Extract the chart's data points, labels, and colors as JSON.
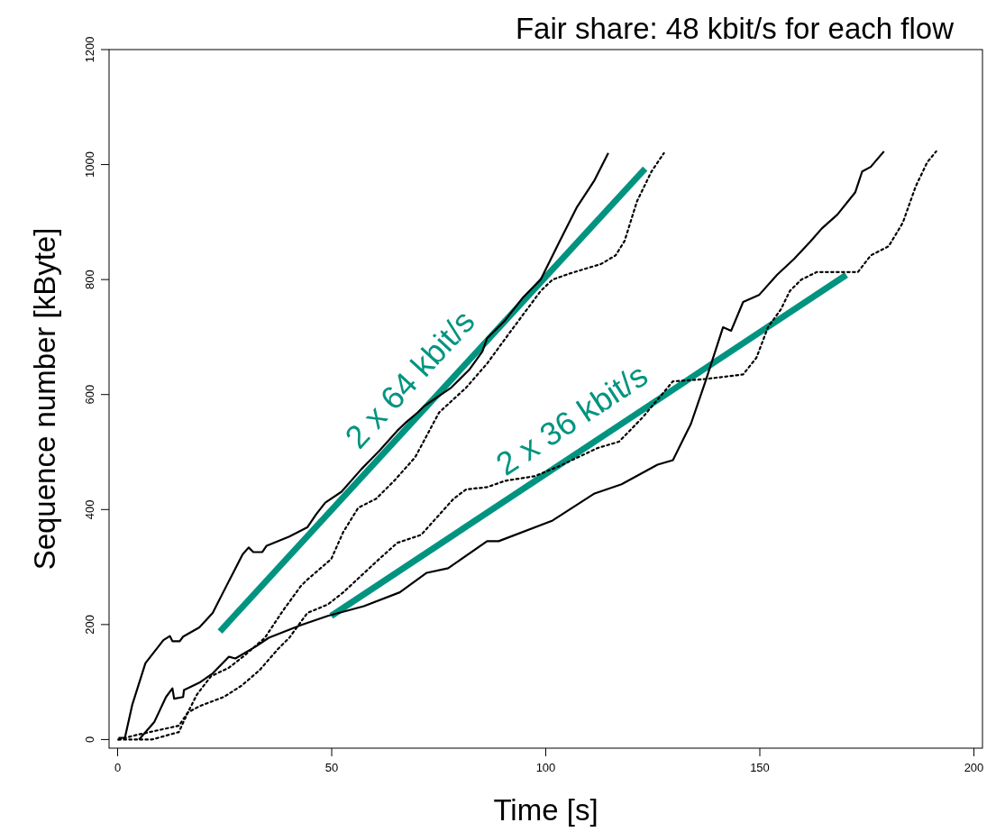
{
  "chart_data": {
    "type": "line",
    "title": "Fair share: 48 kbit/s for each flow",
    "xlabel": "Time [s]",
    "ylabel": "Sequence number [kByte]",
    "xlim": [
      -2,
      202
    ],
    "ylim": [
      -15,
      1200
    ],
    "xticks": [
      0,
      50,
      100,
      150,
      200
    ],
    "yticks": [
      0,
      200,
      400,
      600,
      800,
      1000,
      1200
    ],
    "grid": false,
    "marker": "none",
    "series": [
      {
        "color": "#000000",
        "line_style": "solid",
        "x": [
          0.2,
          1.7,
          3.4,
          6.5,
          10.7,
          12.2,
          12.8,
          14.5,
          15.3,
          19.1,
          22.2,
          25.4,
          29.2,
          30.6,
          31.7,
          33.8,
          34.8,
          40.1,
          44.3,
          46.4,
          48.5,
          52.3,
          56.9,
          61.1,
          65.3,
          67.4,
          70.1,
          71.6,
          77.9,
          82.1,
          85.2,
          86.3,
          90.5,
          94.7,
          98.8,
          103,
          107.2,
          111.4,
          114.6
        ],
        "values": [
          3,
          3,
          60,
          133,
          173,
          180,
          171,
          171,
          179,
          195,
          220,
          267,
          322,
          334,
          326,
          326,
          337,
          353,
          369,
          392,
          412,
          431,
          470,
          502,
          537,
          552,
          569,
          580,
          612,
          643,
          675,
          698,
          729,
          769,
          800,
          863,
          925,
          973,
          1020
        ]
      },
      {
        "color": "#000000",
        "line_style": "dotted",
        "x": [
          0.2,
          4.4,
          14.3,
          16.4,
          18.5,
          21.8,
          26,
          29.6,
          34.4,
          38.6,
          42.8,
          44.3,
          49.9,
          52.7,
          56.2,
          60.4,
          64.6,
          69.5,
          75.1,
          81.4,
          86.3,
          91.9,
          98.8,
          101.6,
          105.8,
          112.9,
          116.3,
          118.4,
          121.3,
          124.7,
          127.6
        ],
        "values": [
          0,
          8,
          24,
          47,
          78,
          110,
          125,
          146,
          177,
          224,
          267,
          278,
          314,
          361,
          403,
          419,
          450,
          491,
          569,
          612,
          654,
          711,
          780,
          800,
          811,
          827,
          842,
          867,
          936,
          988,
          1020
        ]
      },
      {
        "color": "#000000",
        "line_style": "solid",
        "x": [
          5,
          8.6,
          11.3,
          12.8,
          13.2,
          15.3,
          15.5,
          19.1,
          22.2,
          26,
          27.5,
          32.3,
          35.3,
          42.8,
          49.1,
          57.5,
          65.9,
          72.2,
          77.2,
          86.3,
          89,
          101.6,
          111.4,
          117.7,
          126.1,
          129.7,
          133.9,
          137.3,
          141.4,
          143.3,
          146.1,
          149.8,
          154,
          158,
          161.8,
          164.5,
          168.1,
          172.3,
          173.9,
          175.9,
          179
        ],
        "values": [
          0,
          31,
          74,
          89,
          71,
          74,
          86,
          99,
          115,
          144,
          141,
          162,
          177,
          199,
          215,
          232,
          256,
          290,
          298,
          345,
          345,
          381,
          428,
          444,
          478,
          486,
          549,
          623,
          717,
          711,
          761,
          773,
          808,
          836,
          866,
          889,
          913,
          952,
          988,
          996,
          1023
        ]
      },
      {
        "color": "#000000",
        "line_style": "dotted",
        "x": [
          0.2,
          8,
          14.3,
          16.4,
          19.1,
          24.8,
          29,
          33.2,
          37.4,
          40.1,
          44.3,
          49.1,
          52.7,
          61.1,
          65.3,
          70.9,
          78.5,
          81.4,
          86.3,
          90.5,
          97.4,
          103,
          112.1,
          117.1,
          122.6,
          129.7,
          137.3,
          146.1,
          149.2,
          151.9,
          154.9,
          157,
          159.7,
          163.3,
          172.9,
          175.9,
          180.1,
          183.4,
          186.4,
          189.1,
          191.2
        ],
        "values": [
          0,
          0,
          13,
          47,
          58,
          74,
          94,
          121,
          157,
          177,
          220,
          235,
          256,
          314,
          342,
          356,
          419,
          435,
          439,
          450,
          458,
          475,
          507,
          518,
          560,
          623,
          627,
          635,
          664,
          717,
          748,
          780,
          800,
          813,
          813,
          842,
          858,
          899,
          962,
          1004,
          1023
        ]
      },
      {
        "color": "#009480",
        "line_style": "solid",
        "x": [
          23.9,
          123.2
        ],
        "values": [
          188,
          993
        ]
      },
      {
        "color": "#009480",
        "line_style": "solid",
        "x": [
          49.9,
          170.2
        ],
        "values": [
          215,
          808
        ]
      }
    ],
    "annotations": [
      "2 x 64 kbit/s",
      "2 x 36 kbit/s"
    ]
  }
}
